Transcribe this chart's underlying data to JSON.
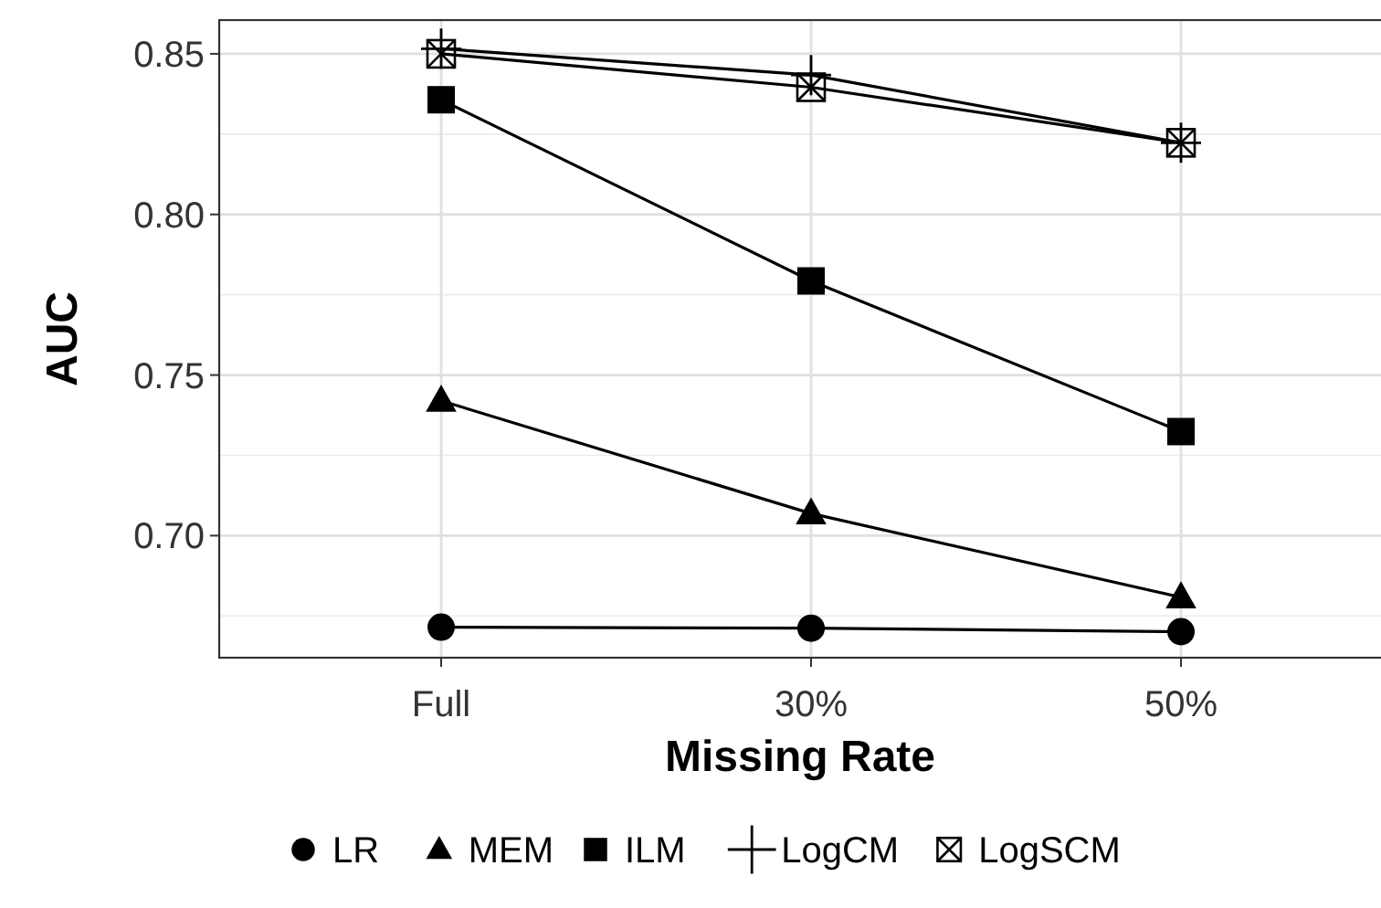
{
  "chart_data": {
    "type": "line",
    "xlabel": "Missing Rate",
    "ylabel": "AUC",
    "categories": [
      "Full",
      "30%",
      "50%"
    ],
    "ylim": [
      0.662,
      0.8605
    ],
    "yticks": [
      {
        "value": 0.7,
        "label": "0.70"
      },
      {
        "value": 0.75,
        "label": "0.75"
      },
      {
        "value": 0.8,
        "label": "0.80"
      },
      {
        "value": 0.85,
        "label": "0.85"
      }
    ],
    "grid": true,
    "legend": "bottom",
    "series": [
      {
        "name": "LR",
        "color": "#000000",
        "marker": "circle",
        "values": [
          0.6715,
          0.6712,
          0.6701
        ]
      },
      {
        "name": "MEM",
        "color": "#000000",
        "marker": "triangle",
        "values": [
          0.742,
          0.7069,
          0.6808
        ]
      },
      {
        "name": "ILM",
        "color": "#000000",
        "marker": "square",
        "values": [
          0.8357,
          0.7793,
          0.7324
        ]
      },
      {
        "name": "LogCM",
        "color": "#000000",
        "marker": "cross",
        "values": [
          0.8516,
          0.8434,
          0.8223
        ]
      },
      {
        "name": "LogSCM",
        "color": "#000000",
        "marker": "square",
        "values": [
          0.85,
          0.8396,
          0.8223
        ]
      }
    ]
  }
}
